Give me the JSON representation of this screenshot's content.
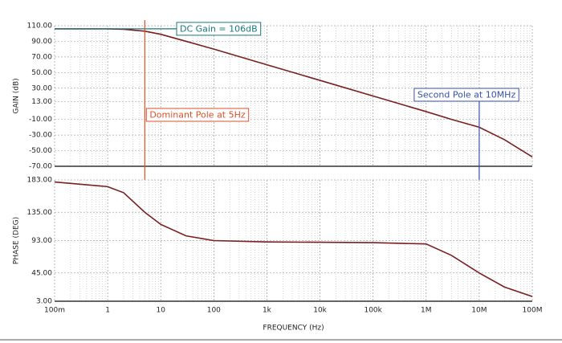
{
  "chart_data": [
    {
      "type": "line",
      "ylabel": "GAIN (dB)",
      "x": [
        0.1,
        1,
        2,
        5,
        10,
        30,
        100,
        1000,
        10000,
        100000,
        1000000,
        3000000,
        10000000,
        30000000,
        100000000
      ],
      "values": [
        106,
        106,
        105.4,
        103,
        99,
        90,
        80,
        60,
        40,
        20,
        0,
        -10,
        -20,
        -36,
        -58
      ],
      "color": "#7a1f1f",
      "xlim": [
        0.1,
        100000000
      ],
      "log_x": true,
      "ylim": [
        -70,
        110
      ],
      "yticks": [
        {
          "value": 110,
          "label": "110.00"
        },
        {
          "value": 90,
          "label": "90.00"
        },
        {
          "value": 70,
          "label": "70.00"
        },
        {
          "value": 50,
          "label": "50.00"
        },
        {
          "value": 30,
          "label": "30.00"
        },
        {
          "value": 13,
          "label": "13.00"
        },
        {
          "value": -10,
          "label": "-10.00"
        },
        {
          "value": -30,
          "label": "-30.00"
        },
        {
          "value": -50,
          "label": "-50.00"
        },
        {
          "value": -70,
          "label": "-70.00"
        }
      ],
      "grid": true,
      "annotations": [
        {
          "text": "DC Gain = 106dB",
          "y": 106,
          "color": "#1a7a7a"
        },
        {
          "text": "Dominant Pole at 5Hz",
          "x": 5,
          "color": "#e0502a"
        },
        {
          "text": "Second Pole at 10MHz",
          "x": 10000000,
          "color": "#3a4fb0"
        }
      ]
    },
    {
      "type": "line",
      "ylabel": "PHASE (DEG)",
      "xlabel": "FREQUENCY (Hz)",
      "x": [
        0.1,
        1,
        2,
        5,
        10,
        30,
        100,
        1000,
        100000,
        1000000,
        3000000,
        10000000,
        30000000,
        100000000
      ],
      "values": [
        180,
        173,
        164,
        135,
        117,
        100,
        93,
        91,
        90,
        88,
        71,
        45,
        24,
        10
      ],
      "color": "#7a1f1f",
      "xlim": [
        0.1,
        100000000
      ],
      "log_x": true,
      "xticks": [
        {
          "value": 0.1,
          "label": "100m"
        },
        1,
        10,
        100,
        {
          "value": 1000,
          "label": "1k"
        },
        {
          "value": 10000,
          "label": "10k"
        },
        {
          "value": 100000,
          "label": "100k"
        },
        {
          "value": 1000000,
          "label": "1M"
        },
        {
          "value": 10000000,
          "label": "10M"
        },
        {
          "value": 100000000,
          "label": "100M"
        }
      ],
      "ylim": [
        3,
        183
      ],
      "yticks": [
        {
          "value": 183,
          "label": "183.00"
        },
        {
          "value": 135,
          "label": "135.00"
        },
        {
          "value": 93,
          "label": "93.00"
        },
        {
          "value": 45,
          "label": "45.00"
        },
        {
          "value": 3,
          "label": "3.00"
        }
      ],
      "grid": true
    }
  ]
}
